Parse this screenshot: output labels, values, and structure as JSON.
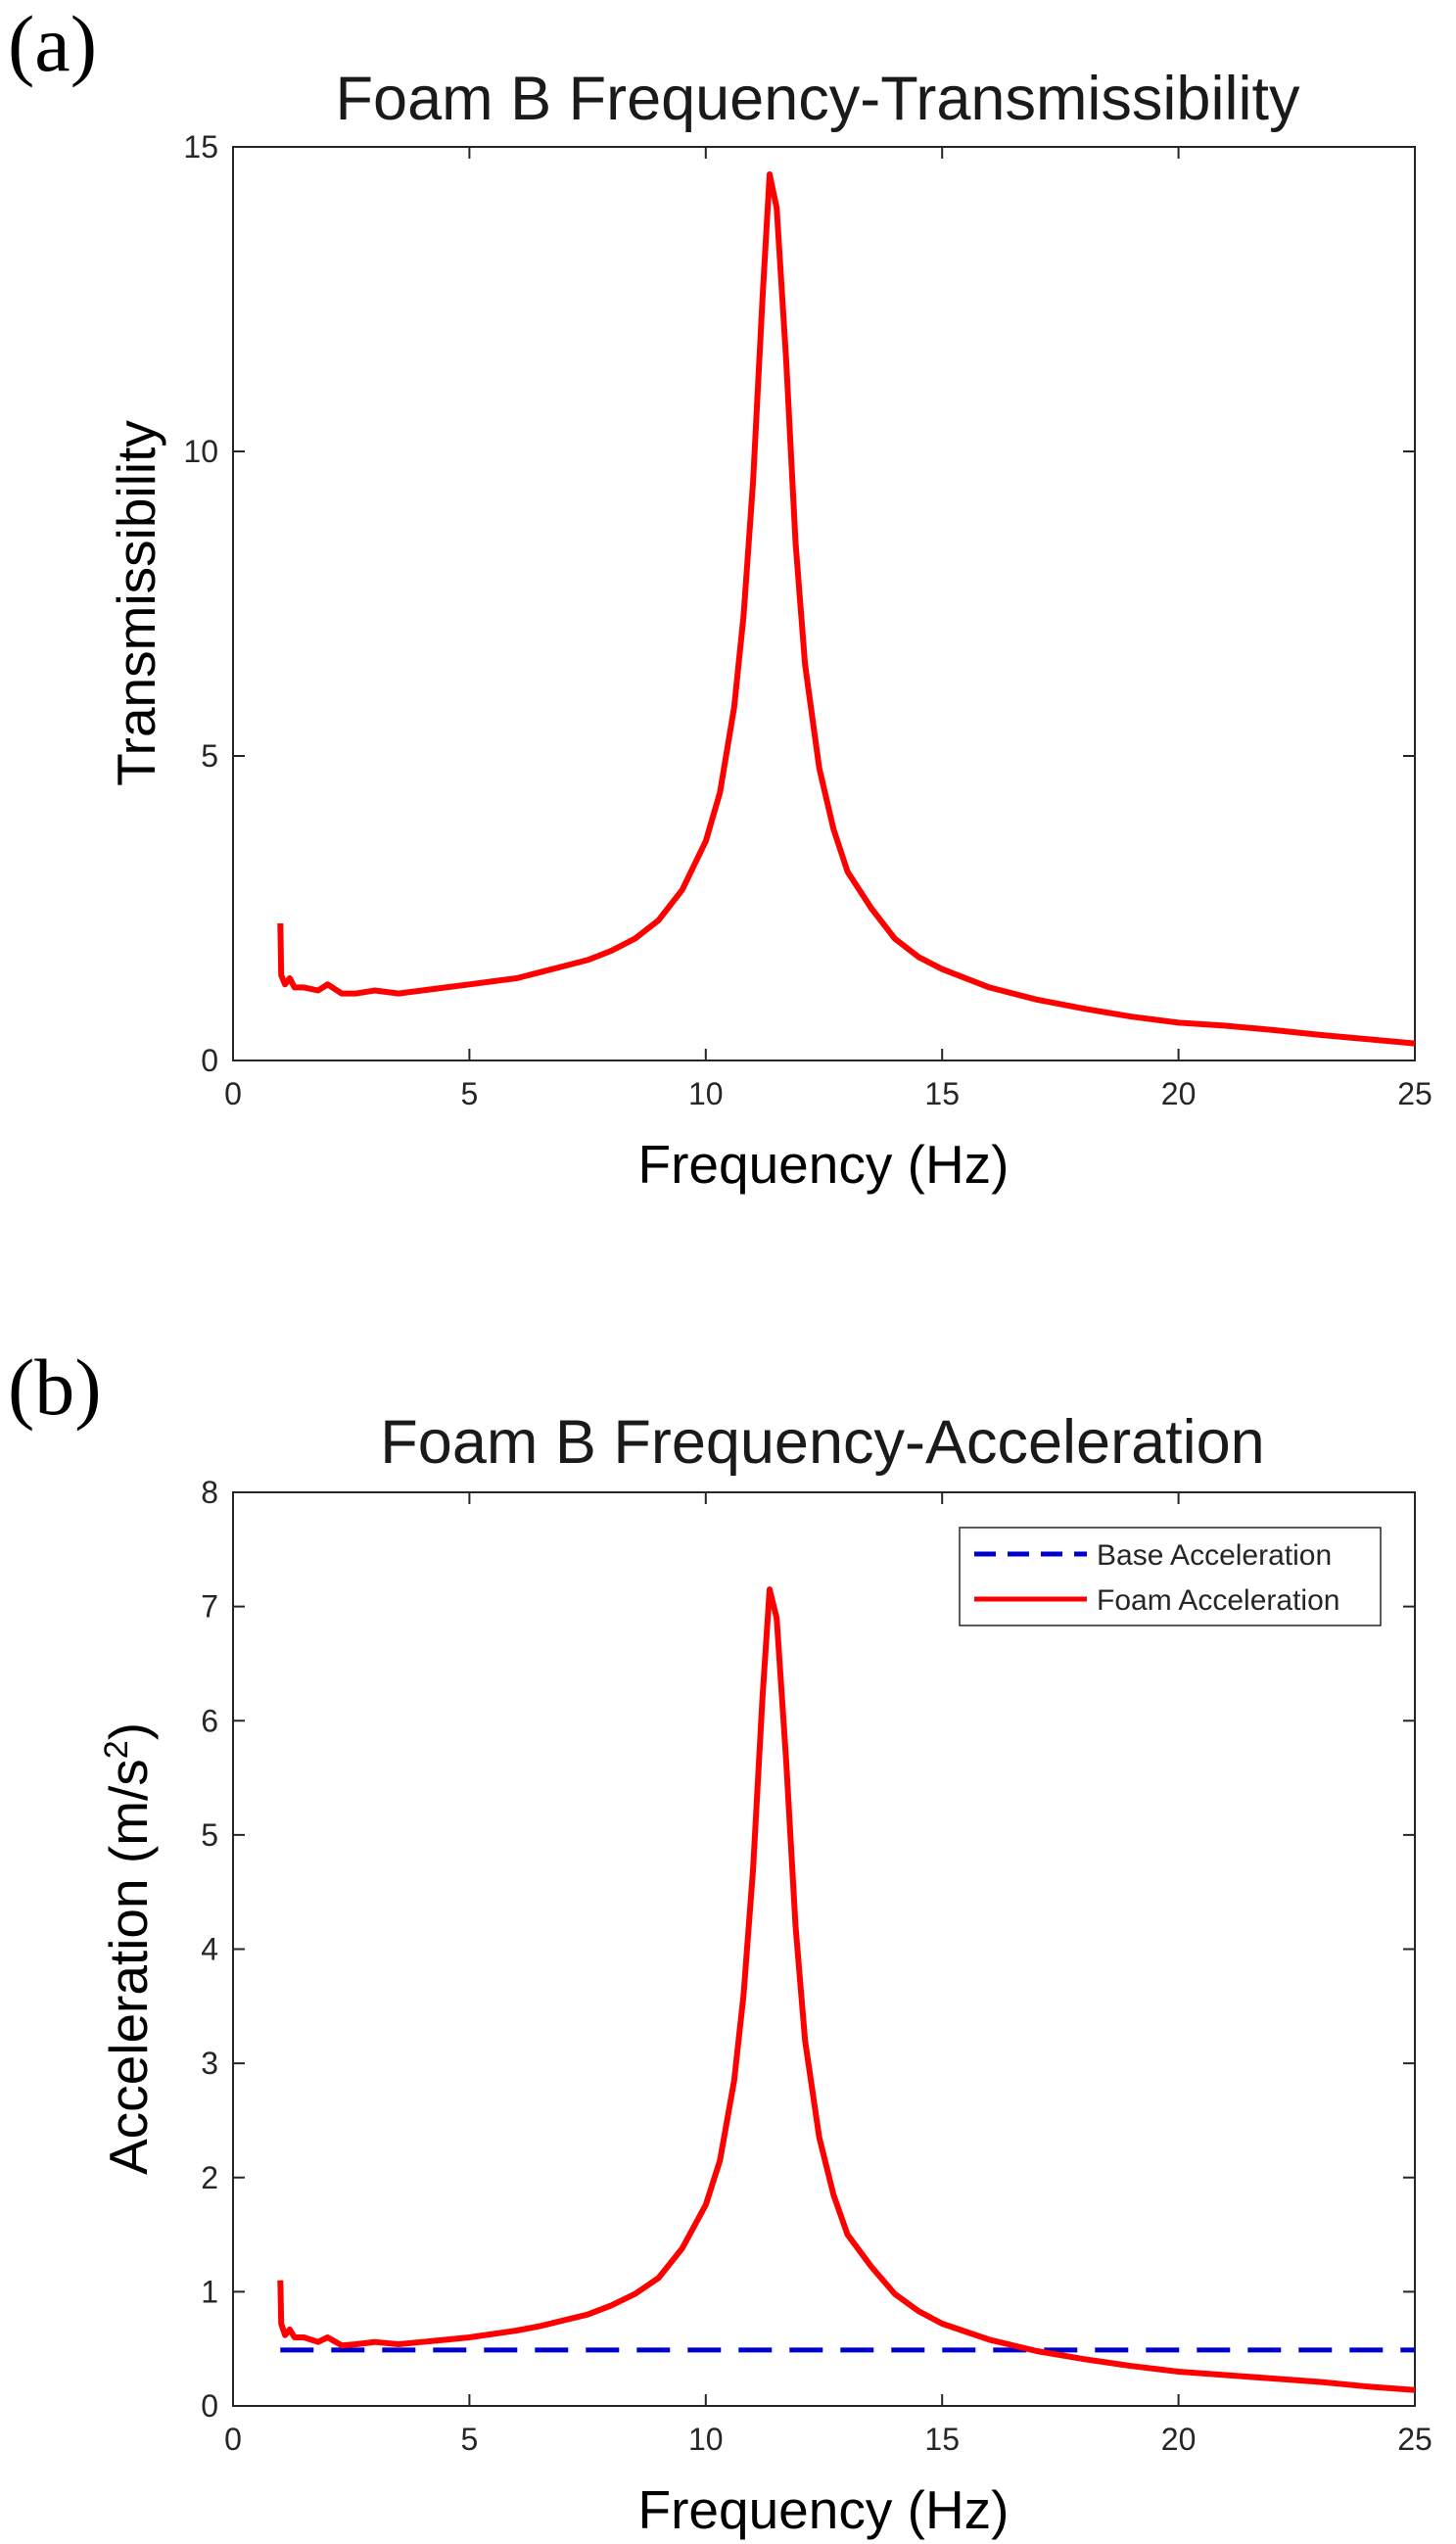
{
  "figure": {
    "panels": [
      {
        "label": "(a)"
      },
      {
        "label": "(b)"
      }
    ]
  },
  "chart_data": [
    {
      "type": "line",
      "title": "Foam B Frequency-Transmissibility",
      "xlabel": "Frequency (Hz)",
      "ylabel": "Transmissibility",
      "xlim": [
        0,
        25
      ],
      "ylim": [
        0,
        15
      ],
      "xticks": [
        0,
        5,
        10,
        15,
        20,
        25
      ],
      "yticks": [
        0,
        5,
        10,
        15
      ],
      "grid": false,
      "series": [
        {
          "name": "Transmissibility",
          "color": "#ff0000",
          "x": [
            1.0,
            1.02,
            1.1,
            1.2,
            1.3,
            1.5,
            1.8,
            2.0,
            2.3,
            2.6,
            3.0,
            3.5,
            4.0,
            4.5,
            5.0,
            5.5,
            6.0,
            6.5,
            7.0,
            7.5,
            8.0,
            8.5,
            9.0,
            9.5,
            10.0,
            10.3,
            10.6,
            10.8,
            11.0,
            11.2,
            11.35,
            11.5,
            11.7,
            11.9,
            12.1,
            12.4,
            12.7,
            13.0,
            13.5,
            14.0,
            14.5,
            15.0,
            16.0,
            17.0,
            18.0,
            19.0,
            20.0,
            21.0,
            22.0,
            23.0,
            24.0,
            25.0
          ],
          "y": [
            2.25,
            1.4,
            1.25,
            1.35,
            1.2,
            1.2,
            1.15,
            1.25,
            1.1,
            1.1,
            1.15,
            1.1,
            1.15,
            1.2,
            1.25,
            1.3,
            1.35,
            1.45,
            1.55,
            1.65,
            1.8,
            2.0,
            2.3,
            2.8,
            3.6,
            4.4,
            5.8,
            7.3,
            9.5,
            12.5,
            14.55,
            14.0,
            11.5,
            8.5,
            6.5,
            4.8,
            3.8,
            3.1,
            2.5,
            2.0,
            1.7,
            1.5,
            1.2,
            1.0,
            0.85,
            0.72,
            0.62,
            0.57,
            0.5,
            0.42,
            0.35,
            0.28
          ]
        }
      ]
    },
    {
      "type": "line",
      "title": "Foam B Frequency-Acceleration",
      "xlabel": "Frequency (Hz)",
      "ylabel": "Acceleration (m/s",
      "ylabel_sup": "2",
      "ylabel_close": ")",
      "xlim": [
        0,
        25
      ],
      "ylim": [
        0,
        8
      ],
      "xticks": [
        0,
        5,
        10,
        15,
        20,
        25
      ],
      "yticks": [
        0,
        1,
        2,
        3,
        4,
        5,
        6,
        7,
        8
      ],
      "grid": false,
      "legend_position": "top-right",
      "series": [
        {
          "name": "Base Acceleration",
          "color": "#0000cc",
          "style": "dashed",
          "x": [
            1.0,
            25.0
          ],
          "y": [
            0.49,
            0.49
          ]
        },
        {
          "name": "Foam Acceleration",
          "color": "#ff0000",
          "style": "solid",
          "x": [
            1.0,
            1.02,
            1.1,
            1.2,
            1.3,
            1.5,
            1.8,
            2.0,
            2.3,
            2.6,
            3.0,
            3.5,
            4.0,
            4.5,
            5.0,
            5.5,
            6.0,
            6.5,
            7.0,
            7.5,
            8.0,
            8.5,
            9.0,
            9.5,
            10.0,
            10.3,
            10.6,
            10.8,
            11.0,
            11.2,
            11.35,
            11.5,
            11.7,
            11.9,
            12.1,
            12.4,
            12.7,
            13.0,
            13.5,
            14.0,
            14.5,
            15.0,
            16.0,
            17.0,
            18.0,
            19.0,
            20.0,
            21.0,
            22.0,
            23.0,
            24.0,
            25.0
          ],
          "y": [
            1.1,
            0.72,
            0.62,
            0.67,
            0.6,
            0.6,
            0.56,
            0.6,
            0.53,
            0.54,
            0.56,
            0.54,
            0.56,
            0.58,
            0.6,
            0.63,
            0.66,
            0.7,
            0.75,
            0.8,
            0.88,
            0.98,
            1.12,
            1.38,
            1.76,
            2.15,
            2.85,
            3.6,
            4.7,
            6.2,
            7.15,
            6.9,
            5.65,
            4.2,
            3.2,
            2.35,
            1.85,
            1.5,
            1.22,
            0.98,
            0.83,
            0.72,
            0.58,
            0.48,
            0.41,
            0.35,
            0.3,
            0.27,
            0.24,
            0.21,
            0.17,
            0.14
          ]
        }
      ]
    }
  ]
}
